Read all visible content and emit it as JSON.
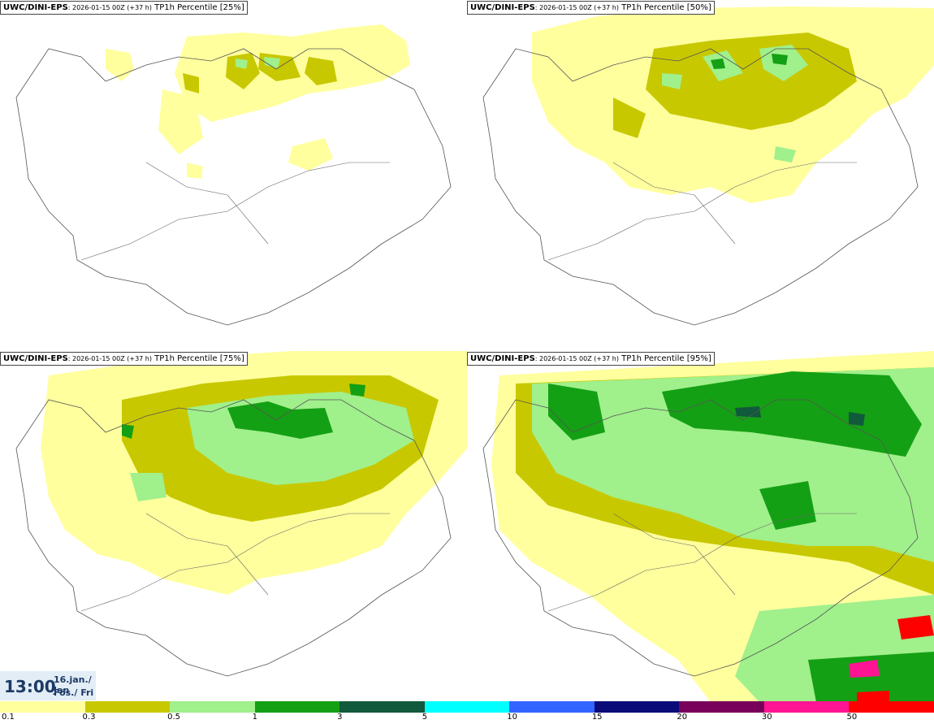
{
  "panels": [
    {
      "model": "UWC/DINI-EPS",
      "run": ": 2026-01-15 00Z (+37 h)",
      "field": " TP1h Percentile [25%]"
    },
    {
      "model": "UWC/DINI-EPS",
      "run": ": 2026-01-15 00Z (+37 h)",
      "field": " TP1h Percentile [50%]"
    },
    {
      "model": "UWC/DINI-EPS",
      "run": ": 2026-01-15 00Z (+37 h)",
      "field": " TP1h Percentile [75%]"
    },
    {
      "model": "UWC/DINI-EPS",
      "run": ": 2026-01-15 00Z (+37 h)",
      "field": " TP1h Percentile [95%]"
    }
  ],
  "valid_time": {
    "clock": "13:00",
    "date": "16.jan./ Jan",
    "day": "Fös./ Fri"
  },
  "legend": {
    "labels": [
      "0.1",
      "0.3",
      "0.5",
      "1",
      "3",
      "5",
      "10",
      "15",
      "20",
      "30",
      "50"
    ],
    "colors": [
      "#ffff9e",
      "#c8c800",
      "#a0f08c",
      "#14a014",
      "#125a3c",
      "#00ffff",
      "#3264ff",
      "#0a0a78",
      "#78005a",
      "#ff1493",
      "#ff0000"
    ]
  }
}
